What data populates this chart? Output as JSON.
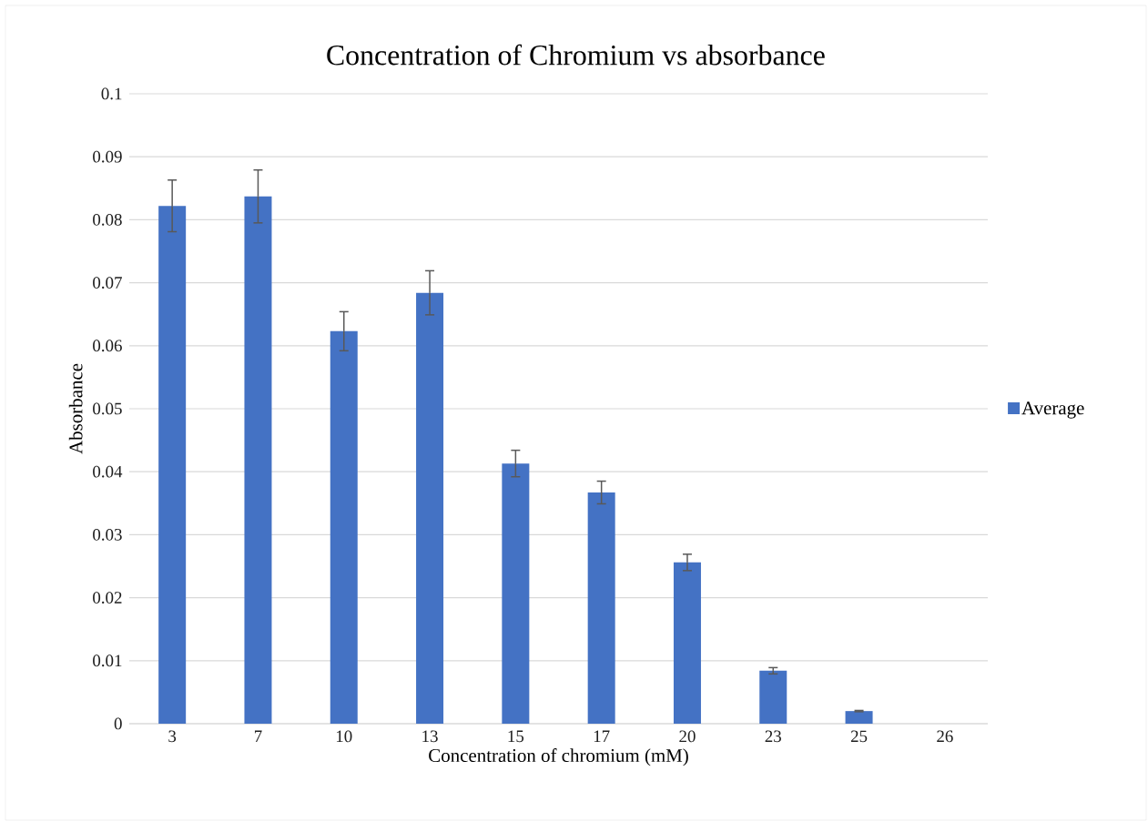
{
  "chart_data": {
    "type": "bar",
    "title": "Concentration of Chromium vs absorbance",
    "xlabel": "Concentration of chromium (mM)",
    "ylabel": "Absorbance",
    "categories": [
      "3",
      "7",
      "10",
      "13",
      "15",
      "17",
      "20",
      "23",
      "25",
      "26"
    ],
    "series": [
      {
        "name": "Average",
        "color": "#4472c4",
        "values": [
          0.0822,
          0.0837,
          0.0623,
          0.0684,
          0.0413,
          0.0367,
          0.0256,
          0.0084,
          0.002,
          0.0
        ],
        "errors": [
          0.0041,
          0.0042,
          0.0031,
          0.0035,
          0.0021,
          0.0018,
          0.0013,
          0.0005,
          0.0001,
          null
        ]
      }
    ],
    "ylim": [
      0,
      0.1
    ],
    "yticks": [
      0,
      0.01,
      0.02,
      0.03,
      0.04,
      0.05,
      0.06,
      0.07,
      0.08,
      0.09,
      0.1
    ],
    "grid": "y",
    "legend": "right"
  }
}
